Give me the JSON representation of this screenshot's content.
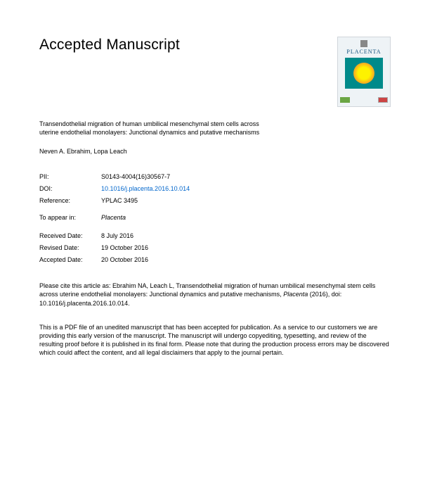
{
  "header": {
    "title": "Accepted Manuscript"
  },
  "journal_cover": {
    "journal_name": "PLACENTA"
  },
  "article": {
    "title": "Transendothelial migration of human umbilical mesenchymal stem cells across uterine endothelial monolayers: Junctional dynamics and putative mechanisms",
    "authors": "Neven A. Ebrahim, Lopa Leach"
  },
  "meta": {
    "pii_label": "PII:",
    "pii_value": "S0143-4004(16)30567-7",
    "doi_label": "DOI:",
    "doi_value": "10.1016/j.placenta.2016.10.014",
    "reference_label": "Reference:",
    "reference_value": "YPLAC 3495"
  },
  "to_appear": {
    "label": "To appear in:",
    "journal": "Placenta"
  },
  "dates": {
    "received_label": "Received Date:",
    "received_value": "8 July 2016",
    "revised_label": "Revised Date:",
    "revised_value": "19 October 2016",
    "accepted_label": "Accepted Date:",
    "accepted_value": "20 October 2016"
  },
  "citation": {
    "prefix": "Please cite this article as: Ebrahim NA, Leach L, Transendothelial migration of human umbilical mesenchymal stem cells across uterine endothelial monolayers: Junctional dynamics and putative mechanisms, ",
    "journal": "Placenta",
    "suffix": " (2016), doi: 10.1016/j.placenta.2016.10.014."
  },
  "disclaimer": "This is a PDF file of an unedited manuscript that has been accepted for publication. As a service to our customers we are providing this early version of the manuscript. The manuscript will undergo copyediting, typesetting, and review of the resulting proof before it is published in its final form. Please note that during the production process errors may be discovered which could affect the content, and all legal disclaimers that apply to the journal pertain."
}
